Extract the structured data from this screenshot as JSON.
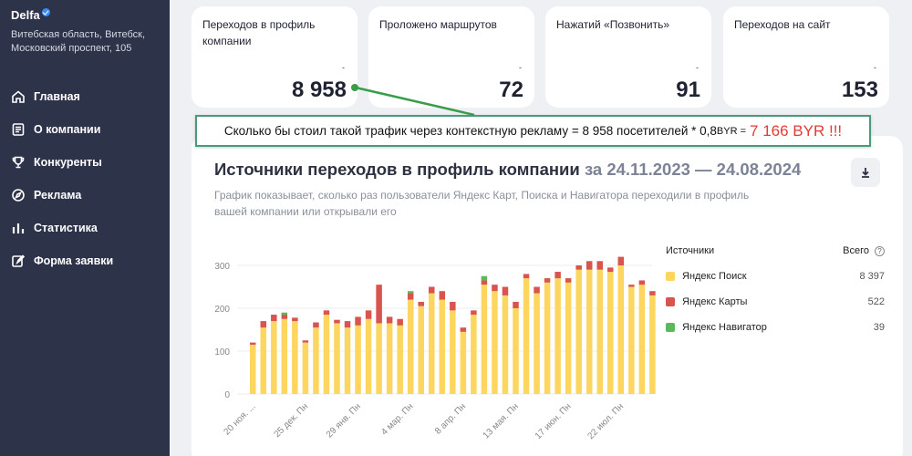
{
  "sidebar": {
    "brand": "Delfa",
    "address": "Витебская область, Витебск, Московский проспект, 105",
    "items": [
      {
        "label": "Главная",
        "icon": "home-icon"
      },
      {
        "label": "О компании",
        "icon": "document-icon"
      },
      {
        "label": "Конкуренты",
        "icon": "trophy-icon"
      },
      {
        "label": "Реклама",
        "icon": "compass-icon"
      },
      {
        "label": "Статистика",
        "icon": "bar-chart-icon"
      },
      {
        "label": "Форма заявки",
        "icon": "edit-icon"
      }
    ]
  },
  "kpis": [
    {
      "label": "Переходов в профиль компании",
      "delta": "-",
      "value": "8 958"
    },
    {
      "label": "Проложено маршрутов",
      "delta": "-",
      "value": "72"
    },
    {
      "label": "Нажатий «Позвонить»",
      "delta": "-",
      "value": "91"
    },
    {
      "label": "Переходов на сайт",
      "delta": "-",
      "value": "153"
    }
  ],
  "annotation": {
    "text_main": "Сколько бы стоил такой трафик через контекстную рекламу = 8 958 посетителей * 0,8",
    "currency_small": " BYR = ",
    "result": "7 166 BYR !!!",
    "border_color": "#4a9a7c"
  },
  "main": {
    "title": "Источники переходов в профиль компании",
    "range": " за 24.11.2023 — 24.08.2024",
    "description": "График показывает, сколько раз пользователи Яндекс Карт, Поиска и Навигатора переходили в профиль вашей компании или открывали его",
    "download_icon": "download-icon"
  },
  "legend": {
    "sources_header": "Источники",
    "total_header": "Всего",
    "help_glyph": "?",
    "items": [
      {
        "name": "Яндекс Поиск",
        "total": "8 397",
        "color": "#fcd65e"
      },
      {
        "name": "Яндекс Карты",
        "total": "522",
        "color": "#d9534f"
      },
      {
        "name": "Яндекс Навигатор",
        "total": "39",
        "color": "#5cb85c"
      }
    ]
  },
  "chart_data": {
    "type": "bar",
    "stacked": true,
    "y_ticks": [
      0,
      100,
      200,
      300
    ],
    "ylim": [
      0,
      330
    ],
    "x_tick_labels": [
      "20 ноя. ...",
      "25 дек. Пн",
      "29 янв. Пн",
      "4 мар. Пн",
      "8 апр. Пн",
      "13 мая. Пн",
      "17 июн. Пн",
      "22 июл. Пн"
    ],
    "x_tick_bar_index": [
      0,
      5,
      10,
      15,
      20,
      25,
      30,
      35
    ],
    "series": [
      {
        "name": "Яндекс Поиск",
        "color": "#fcd65e",
        "values": [
          115,
          155,
          170,
          175,
          170,
          120,
          155,
          185,
          165,
          155,
          160,
          175,
          165,
          165,
          160,
          220,
          205,
          235,
          220,
          195,
          145,
          185,
          255,
          240,
          230,
          200,
          270,
          235,
          260,
          270,
          260,
          290,
          290,
          290,
          285,
          300,
          250,
          255,
          230,
          150
        ]
      },
      {
        "name": "Яндекс Карты",
        "color": "#d9534f",
        "values": [
          5,
          15,
          15,
          10,
          8,
          5,
          12,
          10,
          8,
          15,
          20,
          20,
          90,
          15,
          15,
          15,
          10,
          15,
          20,
          20,
          10,
          10,
          10,
          15,
          20,
          15,
          10,
          15,
          10,
          15,
          10,
          10,
          20,
          20,
          10,
          20,
          5,
          10,
          10,
          15
        ]
      },
      {
        "name": "Яндекс Навигатор",
        "color": "#5cb85c",
        "values": [
          0,
          0,
          0,
          5,
          0,
          0,
          0,
          0,
          0,
          0,
          0,
          0,
          0,
          0,
          0,
          5,
          0,
          0,
          0,
          0,
          0,
          0,
          10,
          0,
          0,
          0,
          0,
          0,
          0,
          0,
          0,
          0,
          0,
          0,
          0,
          0,
          0,
          0,
          0,
          0
        ]
      }
    ]
  }
}
